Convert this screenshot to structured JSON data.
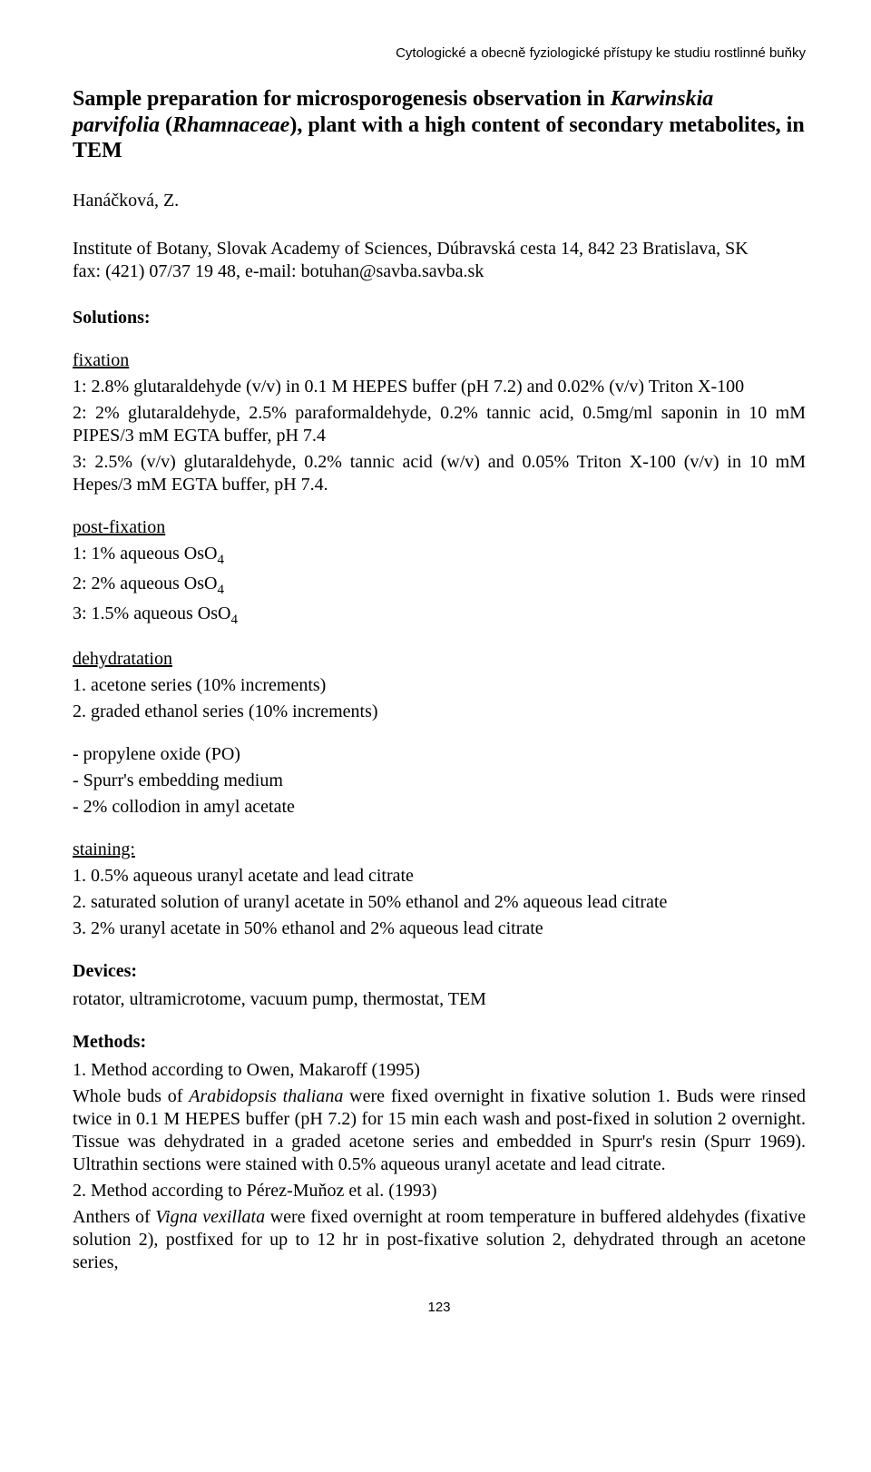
{
  "running_header": "Cytologické a obecně fyziologické přístupy ke studiu rostlinné buňky",
  "title_pre": "Sample preparation for microsporogenesis observation in ",
  "title_ital1": "Karwinskia parvifolia",
  "title_mid": " (",
  "title_ital2": "Rhamnaceae",
  "title_post": "), plant with a high content of secondary metabolites, in TEM",
  "author": "Hanáčková, Z.",
  "affil_line1": "Institute of Botany, Slovak Academy of Sciences, Dúbravská cesta 14, 842 23  Bratislava, SK",
  "affil_line2": "fax: (421) 07/37 19 48, e-mail: botuhan@savba.savba.sk",
  "solutions_heading": "Solutions:",
  "fixation_label": "fixation",
  "fix1": "1: 2.8% glutaraldehyde (v/v) in 0.1 M HEPES buffer (pH 7.2) and 0.02% (v/v) Triton X-100",
  "fix2": "2: 2% glutaraldehyde, 2.5% paraformaldehyde, 0.2% tannic acid, 0.5mg/ml saponin in 10 mM PIPES/3 mM EGTA buffer, pH 7.4",
  "fix3": "3: 2.5% (v/v) glutaraldehyde, 0.2% tannic acid (w/v) and 0.05% Triton X-100 (v/v) in 10 mM Hepes/3 mM EGTA buffer, pH 7.4.",
  "postfix_label": "post-fixation",
  "pf1_pre": "1:  1% aqueous OsO",
  "pf2_pre": "2:  2% aqueous OsO",
  "pf3_pre": "3:  1.5% aqueous OsO",
  "sub4": "4",
  "dehyd_label": "dehydratation",
  "deh1": "1. acetone series (10% increments)",
  "deh2": "2. graded ethanol series (10% increments)",
  "misc1": "- propylene oxide (PO)",
  "misc2": "- Spurr's embedding medium",
  "misc3": "- 2% collodion in amyl acetate",
  "stain_label": "staining:",
  "st1": "1. 0.5% aqueous uranyl acetate and lead citrate",
  "st2": "2. saturated solution of uranyl acetate in 50% ethanol and 2% aqueous lead citrate",
  "st3": "3. 2% uranyl acetate in 50% ethanol and 2% aqueous lead citrate",
  "devices_heading": "Devices:",
  "devices_text": "rotator, ultramicrotome, vacuum pump, thermostat, TEM",
  "methods_heading": "Methods:",
  "m1_pre": "1. Method according to Owen, Makaroff (1995)",
  "m1_a": "Whole buds of ",
  "m1_it": "Arabidopsis thaliana",
  "m1_b": " were fixed overnight in fixative solution 1. Buds were rinsed twice in 0.1 M HEPES buffer (pH 7.2) for 15 min each wash and post-fixed in solution 2 overnight. Tissue was dehydrated in a graded acetone series and embedded in Spurr's resin (Spurr 1969). Ultrathin sections were stained with 0.5% aqueous uranyl acetate and lead citrate.",
  "m2_pre": "2. Method according to Pérez-Muňoz et al. (1993)",
  "m2_a": "Anthers of ",
  "m2_it": "Vigna vexillata",
  "m2_b": " were fixed overnight at room temperature in buffered aldehydes (fixative solution 2), postfixed for up to 12 hr in post-fixative solution 2, dehydrated through an acetone series,",
  "page_number": "123"
}
